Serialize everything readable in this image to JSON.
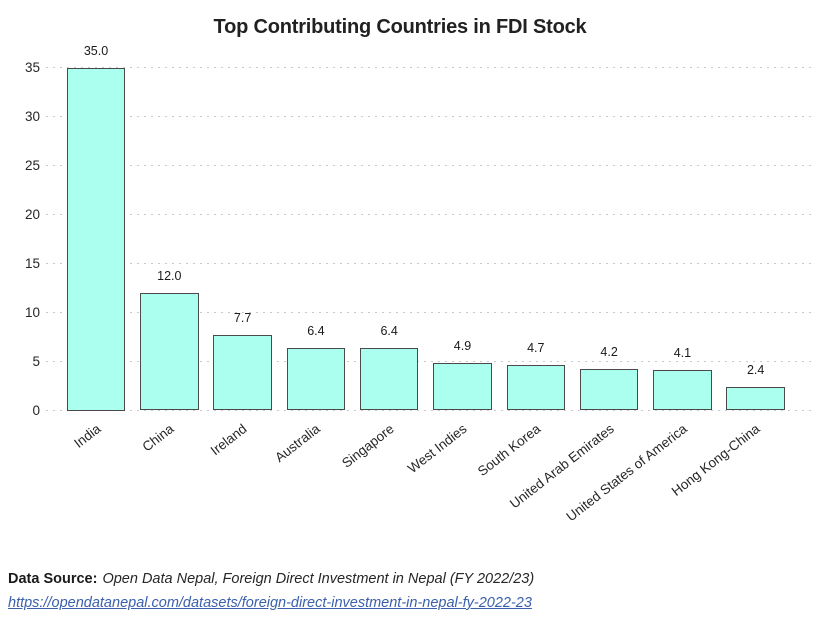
{
  "page": {
    "background": "#ffffff"
  },
  "chart_data": {
    "type": "bar",
    "title": "Top Contributing Countries in FDI Stock",
    "categories": [
      "India",
      "China",
      "Ireland",
      "Australia",
      "Singapore",
      "West Indies",
      "South Korea",
      "United Arab Emirates",
      "United States of America",
      "Hong Kong-China"
    ],
    "values": [
      35.0,
      12.0,
      7.7,
      6.4,
      6.4,
      4.9,
      4.7,
      4.2,
      4.1,
      2.4
    ],
    "bar_value_labels": [
      "35.0",
      "12.0",
      "7.7",
      "6.4",
      "6.4",
      "4.9",
      "4.7",
      "4.2",
      "4.1",
      "2.4"
    ],
    "xlabel": "",
    "ylabel": "",
    "ylim": [
      0,
      35
    ],
    "yticks": [
      0,
      5,
      10,
      15,
      20,
      25,
      30,
      35
    ],
    "grid": "horizontal-dotted",
    "legend": "none",
    "xtick_rotation_deg": -38,
    "colors": {
      "bar_fill": "#aaffee",
      "bar_border": "#4a4a4a",
      "grid": "#c9c9c9",
      "title_text": "#212121",
      "tick_text": "#262626"
    }
  },
  "source": {
    "label": "Data Source:",
    "citation": "Open Data Nepal, Foreign Direct Investment in Nepal (FY 2022/23)",
    "link_text": "https://opendatanepal.com/datasets/foreign-direct-investment-in-nepal-fy-2022-23",
    "link_color": "#3a5fac"
  }
}
